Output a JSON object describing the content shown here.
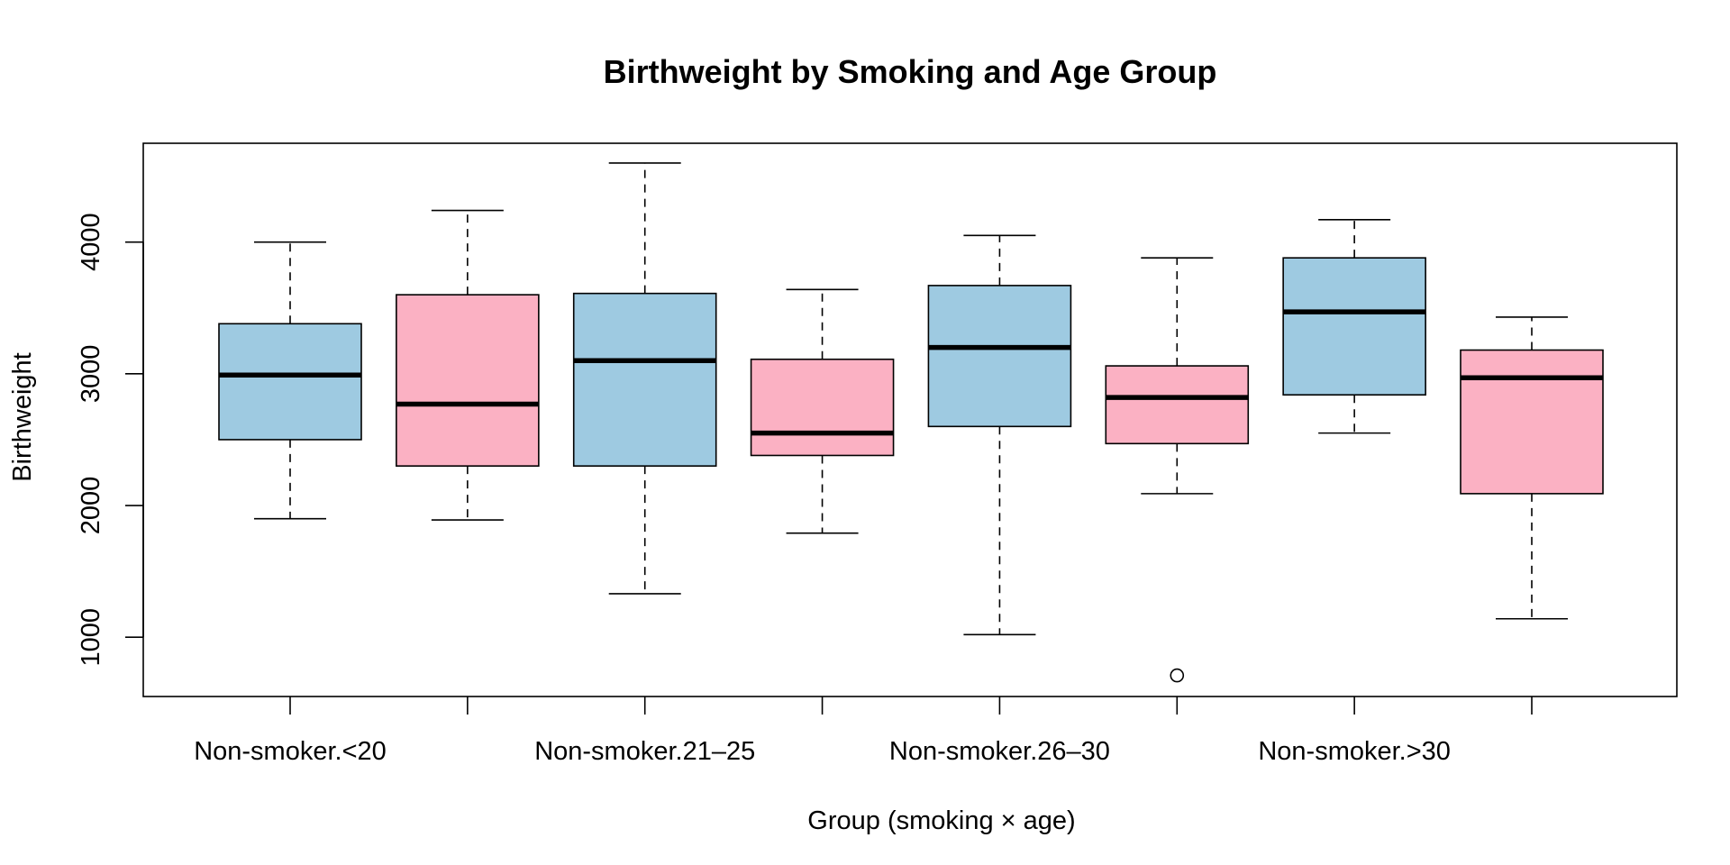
{
  "chart_data": {
    "type": "box",
    "title": "Birthweight by Smoking and Age Group",
    "xlabel": "Group (smoking × age)",
    "ylabel": "Birthweight",
    "ylim": [
      550,
      4750
    ],
    "y_ticks": [
      1000,
      2000,
      3000,
      4000
    ],
    "colors": {
      "Non-smoker": "#9ecae1",
      "Smoker": "#fbb1c3"
    },
    "x_tick_labels": [
      "Non-smoker.<20",
      "",
      "Non-smoker.21–25",
      "",
      "Non-smoker.26–30",
      "",
      "Non-smoker.>30",
      ""
    ],
    "boxes": [
      {
        "smoking": "Non-smoker",
        "age": "<20",
        "whisker_low": 1900,
        "q1": 2500,
        "median": 2990,
        "q3": 3380,
        "whisker_high": 4000,
        "outliers": []
      },
      {
        "smoking": "Smoker",
        "age": "<20",
        "whisker_low": 1890,
        "q1": 2300,
        "median": 2770,
        "q3": 3600,
        "whisker_high": 4240,
        "outliers": []
      },
      {
        "smoking": "Non-smoker",
        "age": "21–25",
        "whisker_low": 1330,
        "q1": 2300,
        "median": 3100,
        "q3": 3610,
        "whisker_high": 4600,
        "outliers": []
      },
      {
        "smoking": "Smoker",
        "age": "21–25",
        "whisker_low": 1790,
        "q1": 2380,
        "median": 2550,
        "q3": 3110,
        "whisker_high": 3640,
        "outliers": []
      },
      {
        "smoking": "Non-smoker",
        "age": "26–30",
        "whisker_low": 1020,
        "q1": 2600,
        "median": 3200,
        "q3": 3670,
        "whisker_high": 4050,
        "outliers": []
      },
      {
        "smoking": "Smoker",
        "age": "26–30",
        "whisker_low": 2090,
        "q1": 2470,
        "median": 2820,
        "q3": 3060,
        "whisker_high": 3880,
        "outliers": [
          710
        ]
      },
      {
        "smoking": "Non-smoker",
        "age": ">30",
        "whisker_low": 2550,
        "q1": 2840,
        "median": 3470,
        "q3": 3880,
        "whisker_high": 4170,
        "outliers": []
      },
      {
        "smoking": "Smoker",
        "age": ">30",
        "whisker_low": 1140,
        "q1": 2090,
        "median": 2970,
        "q3": 3180,
        "whisker_high": 3430,
        "outliers": []
      }
    ]
  }
}
